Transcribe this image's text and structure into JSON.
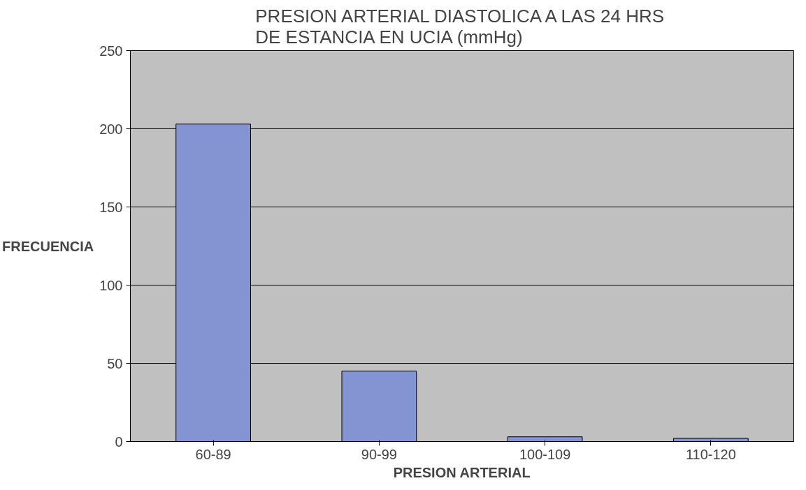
{
  "chart_data": {
    "type": "bar",
    "title": "PRESION ARTERIAL DIASTOLICA A LAS 24 HRS\nDE ESTANCIA EN UCIA (mmHg)",
    "xlabel": "PRESION ARTERIAL",
    "ylabel": "FRECUENCIA",
    "categories": [
      "60-89",
      "90-99",
      "100-109",
      "110-120"
    ],
    "values": [
      203,
      45,
      3,
      2
    ],
    "color": "#8494d2",
    "ylim": [
      0,
      250
    ],
    "yticks": [
      0,
      50,
      100,
      150,
      200,
      250
    ],
    "grid": "y"
  }
}
